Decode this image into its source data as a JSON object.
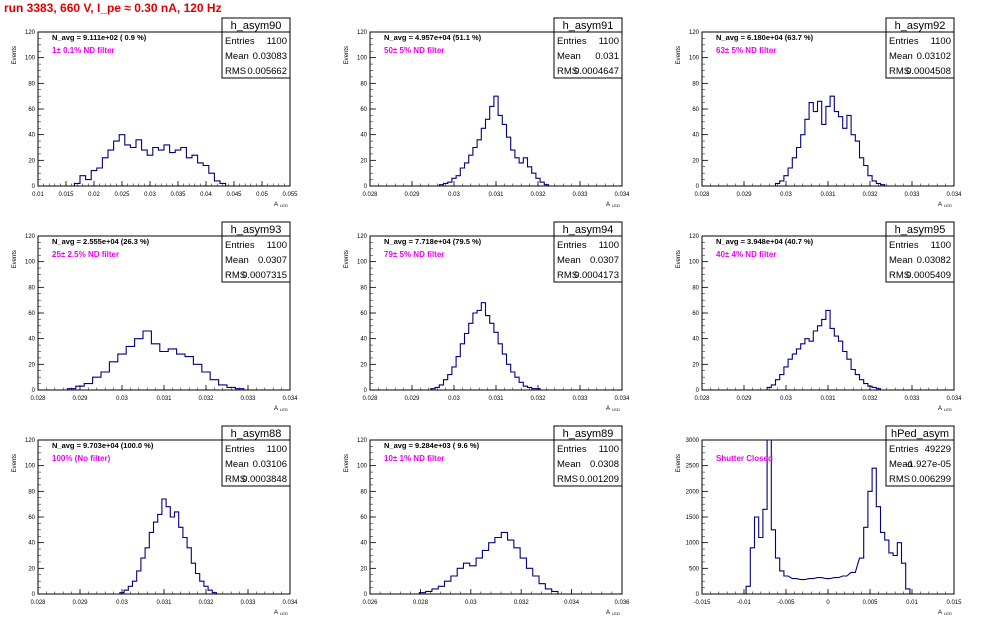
{
  "page": {
    "title": "run 3383,   660 V, I_pe ≈ 0.30 nA, 120 Hz"
  },
  "stats_labels": {
    "entries": "Entries",
    "mean": "Mean",
    "rms": "RMS"
  },
  "common": {
    "ylabel": "Events",
    "xlabel": "A",
    "xlabel_sub": "LED",
    "line_color": "#000080",
    "note_color": "#ee00ee"
  },
  "chart_data": [
    {
      "type": "histogram",
      "name": "h_asym90",
      "nav": "N_avg = 9.111e+02 ( 0.9 %)",
      "note": "1± 0.1% ND filter",
      "entries": "1100",
      "mean": "0.03083",
      "rms": "0.005662",
      "xlim": [
        0.01,
        0.055
      ],
      "ylim": [
        0,
        120
      ],
      "xticks": [
        "0.01",
        "0.015",
        "0.02",
        "0.025",
        "0.03",
        "0.035",
        "0.04",
        "0.045",
        "0.05",
        "0.055"
      ],
      "yticks": [
        "0",
        "20",
        "40",
        "60",
        "80",
        "100",
        "120"
      ],
      "x": [
        0.017,
        0.018,
        0.019,
        0.02,
        0.021,
        0.022,
        0.023,
        0.024,
        0.025,
        0.026,
        0.027,
        0.028,
        0.029,
        0.03,
        0.031,
        0.032,
        0.033,
        0.034,
        0.035,
        0.036,
        0.037,
        0.038,
        0.039,
        0.04,
        0.041,
        0.042,
        0.043
      ],
      "values": [
        2,
        8,
        5,
        12,
        14,
        22,
        28,
        35,
        40,
        32,
        30,
        36,
        28,
        24,
        30,
        28,
        32,
        26,
        28,
        30,
        22,
        24,
        18,
        16,
        10,
        4,
        2
      ]
    },
    {
      "type": "histogram",
      "name": "h_asym91",
      "nav": "N_avg = 4.957e+04 (51.1 %)",
      "note": "50± 5% ND filter",
      "entries": "1100",
      "mean": "0.031",
      "rms": "0.0004647",
      "xlim": [
        0.028,
        0.034
      ],
      "ylim": [
        0,
        120
      ],
      "xticks": [
        "0.028",
        "0.029",
        "0.03",
        "0.031",
        "0.032",
        "0.033",
        "0.034"
      ],
      "yticks": [
        "0",
        "20",
        "40",
        "60",
        "80",
        "100",
        "120"
      ],
      "x": [
        0.0297,
        0.0298,
        0.0299,
        0.03,
        0.0301,
        0.0302,
        0.0303,
        0.0304,
        0.0305,
        0.0306,
        0.0307,
        0.0308,
        0.0309,
        0.031,
        0.0311,
        0.0312,
        0.0313,
        0.0314,
        0.0315,
        0.0316,
        0.0317,
        0.0318,
        0.0319,
        0.032,
        0.0321,
        0.0322
      ],
      "values": [
        1,
        2,
        3,
        6,
        8,
        14,
        18,
        24,
        30,
        36,
        45,
        52,
        62,
        70,
        55,
        48,
        38,
        28,
        22,
        18,
        22,
        15,
        10,
        6,
        3,
        1
      ]
    },
    {
      "type": "histogram",
      "name": "h_asym92",
      "nav": "N_avg = 6.180e+04 (63.7 %)",
      "note": "63± 5% ND filter",
      "entries": "1100",
      "mean": "0.03102",
      "rms": "0.0004508",
      "xlim": [
        0.028,
        0.034
      ],
      "ylim": [
        0,
        120
      ],
      "xticks": [
        "0.028",
        "0.029",
        "0.03",
        "0.031",
        "0.032",
        "0.033",
        "0.034"
      ],
      "yticks": [
        "0",
        "20",
        "40",
        "60",
        "80",
        "100",
        "120"
      ],
      "x": [
        0.0298,
        0.0299,
        0.03,
        0.0301,
        0.0302,
        0.0303,
        0.0304,
        0.0305,
        0.0306,
        0.0307,
        0.0308,
        0.0309,
        0.031,
        0.0311,
        0.0312,
        0.0313,
        0.0314,
        0.0315,
        0.0316,
        0.0317,
        0.0318,
        0.0319,
        0.032,
        0.0321,
        0.0322,
        0.0323
      ],
      "values": [
        2,
        4,
        8,
        14,
        22,
        30,
        40,
        52,
        65,
        58,
        66,
        48,
        62,
        70,
        58,
        54,
        45,
        55,
        40,
        35,
        22,
        16,
        8,
        4,
        2,
        1
      ]
    },
    {
      "type": "histogram",
      "name": "h_asym93",
      "nav": "N_avg = 2.555e+04 (26.3 %)",
      "note": "25± 2.5% ND filter",
      "entries": "1100",
      "mean": "0.0307",
      "rms": "0.0007315",
      "xlim": [
        0.028,
        0.034
      ],
      "ylim": [
        0,
        120
      ],
      "xticks": [
        "0.028",
        "0.029",
        "0.03",
        "0.031",
        "0.032",
        "0.033",
        "0.034"
      ],
      "yticks": [
        "0",
        "20",
        "40",
        "60",
        "80",
        "100",
        "120"
      ],
      "x": [
        0.0288,
        0.029,
        0.0292,
        0.0294,
        0.0296,
        0.0298,
        0.03,
        0.0302,
        0.0304,
        0.0306,
        0.0308,
        0.031,
        0.0312,
        0.0314,
        0.0316,
        0.0318,
        0.032,
        0.0322,
        0.0324,
        0.0326,
        0.0328
      ],
      "values": [
        1,
        3,
        5,
        10,
        14,
        22,
        28,
        34,
        40,
        46,
        36,
        30,
        32,
        28,
        26,
        20,
        14,
        8,
        4,
        2,
        1
      ]
    },
    {
      "type": "histogram",
      "name": "h_asym94",
      "nav": "N_avg = 7.718e+04 (79.5 %)",
      "note": "79± 5% ND filter",
      "entries": "1100",
      "mean": "0.0307",
      "rms": "0.0004173",
      "xlim": [
        0.028,
        0.034
      ],
      "ylim": [
        0,
        120
      ],
      "xticks": [
        "0.028",
        "0.029",
        "0.03",
        "0.031",
        "0.032",
        "0.033",
        "0.034"
      ],
      "yticks": [
        "0",
        "20",
        "40",
        "60",
        "80",
        "100",
        "120"
      ],
      "x": [
        0.0295,
        0.0296,
        0.0297,
        0.0298,
        0.0299,
        0.03,
        0.0301,
        0.0302,
        0.0303,
        0.0304,
        0.0305,
        0.0306,
        0.0307,
        0.0308,
        0.0309,
        0.031,
        0.0311,
        0.0312,
        0.0313,
        0.0314,
        0.0315,
        0.0316,
        0.0317,
        0.0318,
        0.0319,
        0.032
      ],
      "values": [
        1,
        2,
        4,
        8,
        12,
        18,
        26,
        36,
        44,
        52,
        60,
        62,
        68,
        58,
        52,
        45,
        36,
        28,
        20,
        14,
        10,
        6,
        3,
        2,
        1,
        1
      ]
    },
    {
      "type": "histogram",
      "name": "h_asym95",
      "nav": "N_avg = 3.948e+04 (40.7 %)",
      "note": "40± 4% ND filter",
      "entries": "1100",
      "mean": "0.03082",
      "rms": "0.0005409",
      "xlim": [
        0.028,
        0.034
      ],
      "ylim": [
        0,
        120
      ],
      "xticks": [
        "0.028",
        "0.029",
        "0.03",
        "0.031",
        "0.032",
        "0.033",
        "0.034"
      ],
      "yticks": [
        "0",
        "20",
        "40",
        "60",
        "80",
        "100",
        "120"
      ],
      "x": [
        0.0296,
        0.0297,
        0.0298,
        0.0299,
        0.03,
        0.0301,
        0.0302,
        0.0303,
        0.0304,
        0.0305,
        0.0306,
        0.0307,
        0.0308,
        0.0309,
        0.031,
        0.0311,
        0.0312,
        0.0313,
        0.0314,
        0.0315,
        0.0316,
        0.0317,
        0.0318,
        0.0319,
        0.032,
        0.0321,
        0.0322
      ],
      "values": [
        2,
        4,
        8,
        12,
        18,
        24,
        28,
        32,
        36,
        40,
        38,
        46,
        50,
        55,
        62,
        48,
        42,
        38,
        30,
        24,
        16,
        12,
        8,
        5,
        3,
        2,
        1
      ]
    },
    {
      "type": "histogram",
      "name": "h_asym88",
      "nav": "N_avg = 9.703e+04 (100.0 %)",
      "note": "100% (No filter)",
      "entries": "1100",
      "mean": "0.03106",
      "rms": "0.0003848",
      "xlim": [
        0.028,
        0.034
      ],
      "ylim": [
        0,
        120
      ],
      "xticks": [
        "0.028",
        "0.029",
        "0.03",
        "0.031",
        "0.032",
        "0.033",
        "0.034"
      ],
      "yticks": [
        "0",
        "20",
        "40",
        "60",
        "80",
        "100",
        "120"
      ],
      "x": [
        0.03,
        0.0301,
        0.0302,
        0.0303,
        0.0304,
        0.0305,
        0.0306,
        0.0307,
        0.0308,
        0.0309,
        0.031,
        0.0311,
        0.0312,
        0.0313,
        0.0314,
        0.0315,
        0.0316,
        0.0317,
        0.0318,
        0.0319,
        0.032,
        0.0321,
        0.0322
      ],
      "values": [
        1,
        3,
        6,
        10,
        18,
        28,
        36,
        48,
        56,
        62,
        74,
        68,
        60,
        64,
        52,
        44,
        36,
        24,
        16,
        10,
        6,
        3,
        1
      ]
    },
    {
      "type": "histogram",
      "name": "h_asym89",
      "nav": "N_avg = 9.284e+03 ( 9.6 %)",
      "note": "10± 1% ND filter",
      "entries": "1100",
      "mean": "0.0308",
      "rms": "0.001209",
      "xlim": [
        0.025,
        0.037
      ],
      "ylim": [
        0,
        120
      ],
      "xticks": [
        "0.026",
        "0.028",
        "0.03",
        "0.032",
        "0.034",
        "0.036"
      ],
      "yticks": [
        "0",
        "20",
        "40",
        "60",
        "80",
        "100",
        "120"
      ],
      "x": [
        0.0275,
        0.0278,
        0.0281,
        0.0284,
        0.0287,
        0.029,
        0.0293,
        0.0296,
        0.0299,
        0.0302,
        0.0305,
        0.0308,
        0.0311,
        0.0314,
        0.0317,
        0.032,
        0.0323,
        0.0326,
        0.0329,
        0.0332,
        0.0335,
        0.0338
      ],
      "values": [
        1,
        2,
        4,
        6,
        10,
        14,
        20,
        24,
        22,
        28,
        34,
        40,
        44,
        48,
        42,
        36,
        28,
        20,
        14,
        8,
        4,
        2
      ]
    },
    {
      "type": "histogram",
      "name": "hPed_asym",
      "nav": "",
      "note": "Shutter Closed",
      "entries": "49229",
      "mean": "-1.927e-05",
      "rms": "0.006299",
      "xlim": [
        -0.015,
        0.015
      ],
      "ylim": [
        0,
        3000
      ],
      "xticks": [
        "-0.015",
        "-0.01",
        "-0.005",
        "0",
        "0.005",
        "0.01",
        "0.015"
      ],
      "yticks": [
        "0",
        "500",
        "1000",
        "1500",
        "2000",
        "2500",
        "3000"
      ],
      "x": [
        -0.0095,
        -0.009,
        -0.0085,
        -0.008,
        -0.0075,
        -0.007,
        -0.0065,
        -0.006,
        -0.0055,
        -0.005,
        -0.004,
        -0.003,
        -0.002,
        -0.001,
        0.0,
        0.001,
        0.002,
        0.003,
        0.004,
        0.0045,
        0.005,
        0.0055,
        0.006,
        0.0065,
        0.007,
        0.0075,
        0.008,
        0.0085,
        0.009,
        0.0095
      ],
      "values": [
        150,
        900,
        1500,
        1100,
        1650,
        3000,
        1250,
        700,
        450,
        350,
        300,
        280,
        300,
        320,
        300,
        320,
        350,
        420,
        700,
        1300,
        2000,
        2450,
        1700,
        1200,
        1050,
        800,
        750,
        1000,
        600,
        100
      ]
    }
  ]
}
